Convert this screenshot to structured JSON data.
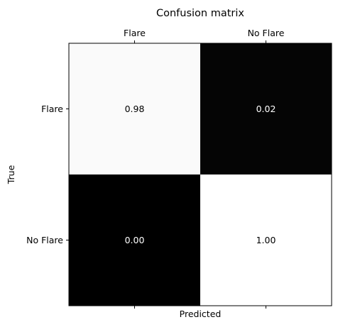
{
  "chart_data": {
    "type": "heatmap",
    "title": "Confusion matrix",
    "xlabel": "Predicted",
    "ylabel": "True",
    "x_categories": [
      "Flare",
      "No Flare"
    ],
    "y_categories": [
      "Flare",
      "No Flare"
    ],
    "x_ticks_position": "top",
    "values": [
      [
        0.98,
        0.02
      ],
      [
        0.0,
        1.0
      ]
    ],
    "value_labels": [
      [
        "0.98",
        "0.02"
      ],
      [
        "0.00",
        "1.00"
      ]
    ],
    "colormap": "gray",
    "color_range": [
      0,
      1
    ],
    "grid": false,
    "legend": "none"
  }
}
